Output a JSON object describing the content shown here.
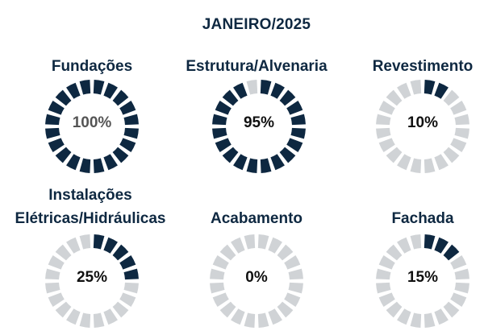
{
  "title": "JANEIRO/2025",
  "colors": {
    "filled": "#0e2841",
    "empty": "#d0d3d6",
    "title": "#0e2841"
  },
  "chart_data": [
    {
      "type": "pie",
      "title": "Fundações",
      "value_label": "100%",
      "values": [
        100,
        0
      ]
    },
    {
      "type": "pie",
      "title": "Estrutura/Alvenaria",
      "value_label": "95%",
      "values": [
        95,
        5
      ]
    },
    {
      "type": "pie",
      "title": "Revestimento",
      "value_label": "10%",
      "values": [
        10,
        90
      ]
    },
    {
      "type": "pie",
      "title": "Instalações Elétricas/Hidráulicas",
      "title_lines": [
        "Instalações",
        "Elétricas/Hidráulicas"
      ],
      "value_label": "25%",
      "values": [
        25,
        75
      ]
    },
    {
      "type": "pie",
      "title": "Acabamento",
      "value_label": "0%",
      "values": [
        0,
        100
      ]
    },
    {
      "type": "pie",
      "title": "Fachada",
      "value_label": "15%",
      "values": [
        15,
        85
      ]
    }
  ]
}
